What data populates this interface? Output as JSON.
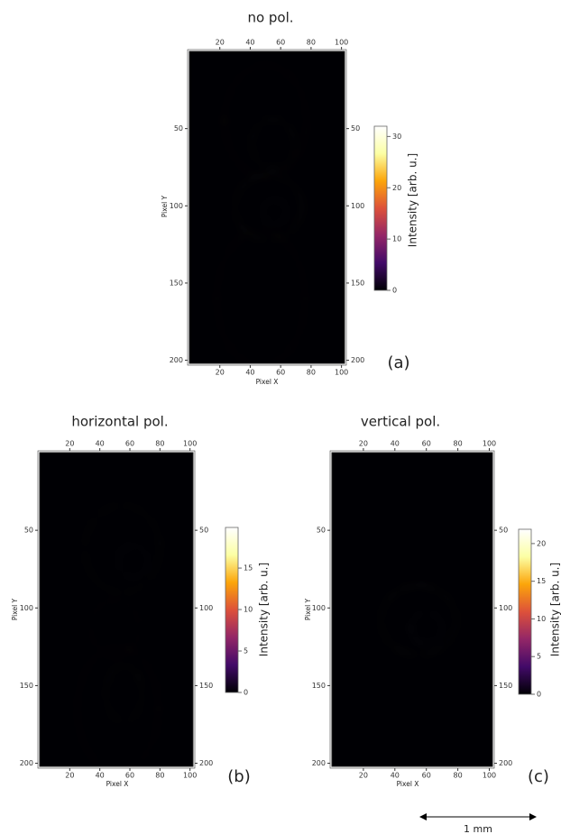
{
  "chart_data": [
    {
      "type": "heatmap",
      "title": "no pol.",
      "panel_label": "(a)",
      "xlabel": "Pixel X",
      "ylabel": "Pixel Y",
      "colorbar_label": "Intensity [arb. u.]",
      "xlim": [
        0,
        102
      ],
      "ylim": [
        0,
        202
      ],
      "xticks": [
        20,
        40,
        60,
        80,
        100
      ],
      "yticks": [
        50,
        100,
        150,
        200
      ],
      "clim": [
        0,
        32
      ],
      "cticks": [
        0,
        10,
        20,
        30
      ],
      "colormap": [
        "#000004",
        "#420a68",
        "#932667",
        "#dd513a",
        "#fca50a",
        "#fcffa4",
        "#ffffff"
      ]
    },
    {
      "type": "heatmap",
      "title": "horizontal pol.",
      "panel_label": "(b)",
      "xlabel": "Pixel X",
      "ylabel": "Pixel Y",
      "colorbar_label": "Intensity [arb. u.]",
      "xlim": [
        0,
        102
      ],
      "ylim": [
        0,
        202
      ],
      "xticks": [
        20,
        40,
        60,
        80,
        100
      ],
      "yticks": [
        50,
        100,
        150,
        200
      ],
      "clim": [
        0,
        19.9
      ],
      "cticks": [
        0,
        5,
        10,
        15
      ],
      "colormap": [
        "#000004",
        "#420a68",
        "#932667",
        "#dd513a",
        "#fca50a",
        "#fcffa4",
        "#ffffff"
      ]
    },
    {
      "type": "heatmap",
      "title": "vertical pol.",
      "panel_label": "(c)",
      "xlabel": "Pixel X",
      "ylabel": "Pixel Y",
      "colorbar_label": "Intensity [arb. u.]",
      "xlim": [
        0,
        102
      ],
      "ylim": [
        0,
        202
      ],
      "xticks": [
        20,
        40,
        60,
        80,
        100
      ],
      "yticks": [
        50,
        100,
        150,
        200
      ],
      "clim": [
        0,
        21.9
      ],
      "cticks": [
        0,
        5,
        10,
        15,
        20
      ],
      "colormap": [
        "#000004",
        "#420a68",
        "#932667",
        "#dd513a",
        "#fca50a",
        "#fcffa4",
        "#ffffff"
      ]
    }
  ],
  "scale_bar": "1 mm"
}
